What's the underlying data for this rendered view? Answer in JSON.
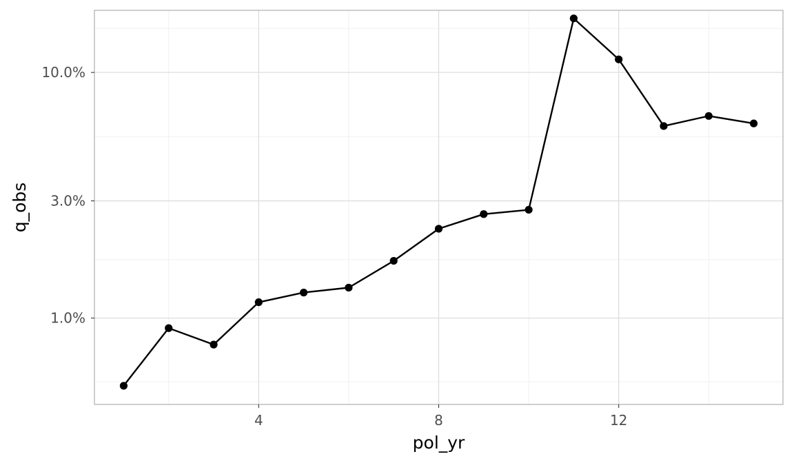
{
  "chart_data": {
    "type": "line",
    "xlabel": "pol_yr",
    "ylabel": "q_obs",
    "x_scale": "linear",
    "y_scale": "log10",
    "xlim": [
      0.35,
      15.65
    ],
    "ylim": [
      0.00445,
      0.179
    ],
    "x_ticks": [
      {
        "value": 4,
        "label": "4"
      },
      {
        "value": 8,
        "label": "8"
      },
      {
        "value": 12,
        "label": "12"
      }
    ],
    "x_minor_ticks": [
      2,
      6,
      10,
      14
    ],
    "y_ticks": [
      {
        "value": 0.01,
        "label": "1.0%"
      },
      {
        "value": 0.03,
        "label": "3.0%"
      },
      {
        "value": 0.1,
        "label": "10.0%"
      }
    ],
    "y_minor_ticks": [
      0.0055,
      0.0173,
      0.0548,
      0.151
    ],
    "grid": true,
    "series": [
      {
        "color": "#000000",
        "points": [
          {
            "x": 1,
            "y": 0.0053
          },
          {
            "x": 2,
            "y": 0.0091
          },
          {
            "x": 3,
            "y": 0.0078
          },
          {
            "x": 4,
            "y": 0.0116
          },
          {
            "x": 5,
            "y": 0.0127
          },
          {
            "x": 6,
            "y": 0.0133
          },
          {
            "x": 7,
            "y": 0.0171
          },
          {
            "x": 8,
            "y": 0.0231
          },
          {
            "x": 9,
            "y": 0.0265
          },
          {
            "x": 10,
            "y": 0.0276
          },
          {
            "x": 11,
            "y": 0.166
          },
          {
            "x": 12,
            "y": 0.113
          },
          {
            "x": 13,
            "y": 0.0605
          },
          {
            "x": 14,
            "y": 0.0665
          },
          {
            "x": 15,
            "y": 0.062
          }
        ]
      }
    ]
  }
}
